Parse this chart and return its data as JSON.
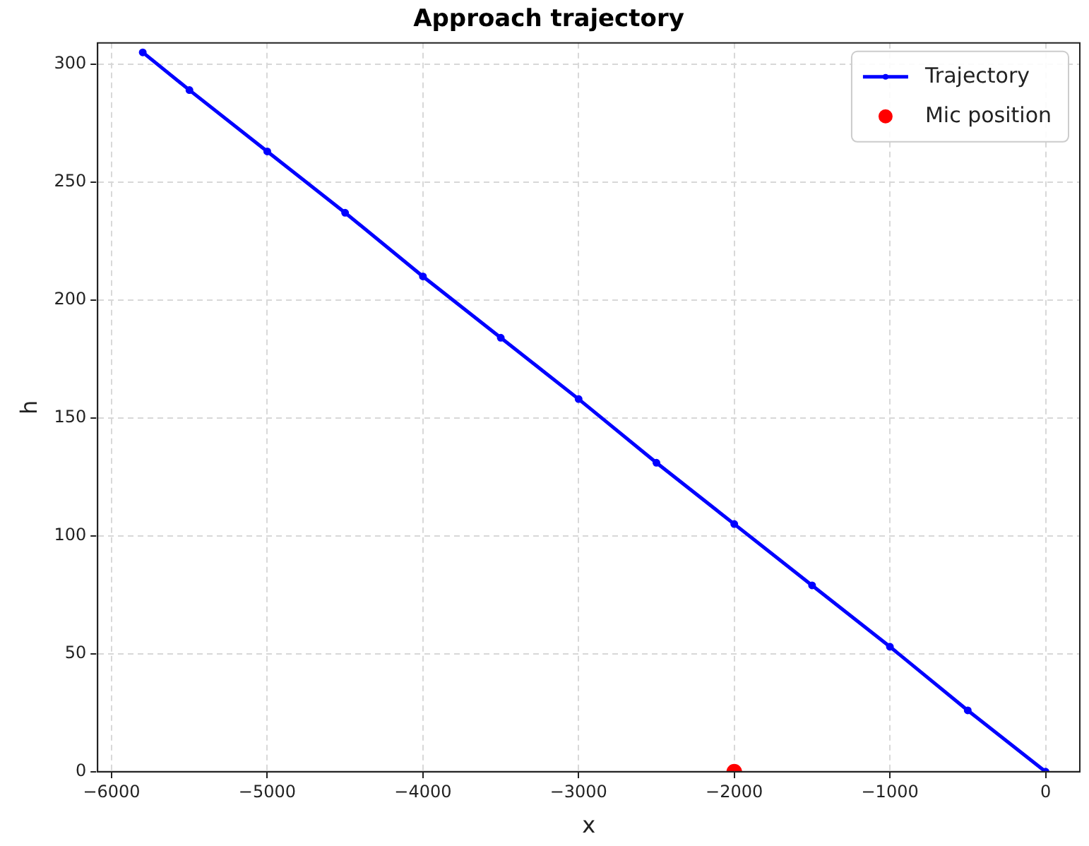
{
  "chart_data": {
    "type": "line",
    "title": "Approach trajectory",
    "xlabel": "x",
    "ylabel": "h",
    "xlim": [
      -6090,
      220
    ],
    "xticks": [
      -6000,
      -5000,
      -4000,
      -3000,
      -2000,
      -1000,
      0
    ],
    "ylim": [
      0,
      309
    ],
    "yticks": [
      0,
      50,
      100,
      150,
      200,
      250,
      300
    ],
    "grid": true,
    "legend": "top right",
    "series": [
      {
        "name": "Trajectory",
        "type": "line",
        "color": "#0000ff",
        "marker": "circle",
        "x": [
          -5800,
          -5500,
          -5000,
          -4500,
          -4000,
          -3500,
          -3000,
          -2500,
          -2000,
          -1500,
          -1000,
          -500,
          0
        ],
        "values": [
          305,
          289,
          263,
          237,
          210,
          184,
          158,
          131,
          105,
          79,
          53,
          26,
          0
        ]
      },
      {
        "name": "Mic position",
        "type": "scatter",
        "color": "#ff0000",
        "marker": "circle",
        "x": [
          -2000
        ],
        "values": [
          0
        ]
      }
    ]
  }
}
